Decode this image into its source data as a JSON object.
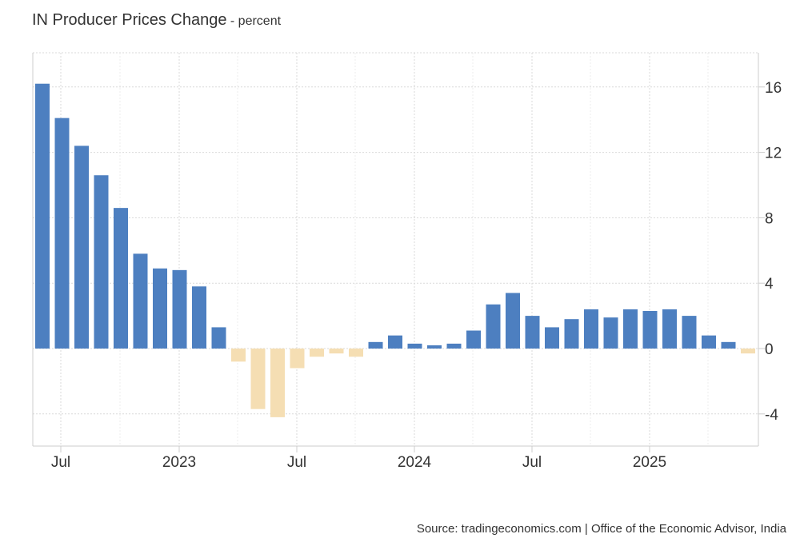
{
  "title": "IN Producer Prices Change",
  "title_suffix": "- percent",
  "source": "Source: tradingeconomics.com | Office of the Economic Advisor, India",
  "colors": {
    "positive": "#4d7fc0",
    "negative": "#f5deb3",
    "grid": "#d9d9d9",
    "axis": "#cccccc",
    "text": "#333333"
  },
  "chart_data": {
    "type": "bar",
    "x_tick_labels": [
      "Jul",
      "2023",
      "Jul",
      "2024",
      "Jul",
      "2025"
    ],
    "y_tick_labels": [
      "16",
      "12",
      "8",
      "4",
      "0",
      "-4"
    ],
    "ylim": [
      -6,
      18
    ],
    "y_axis_position": "right",
    "grid": true,
    "categories": [
      "2022-06",
      "2022-07",
      "2022-08",
      "2022-09",
      "2022-10",
      "2022-11",
      "2022-12",
      "2023-01",
      "2023-02",
      "2023-03",
      "2023-04",
      "2023-05",
      "2023-06",
      "2023-07",
      "2023-08",
      "2023-09",
      "2023-10",
      "2023-11",
      "2023-12",
      "2024-01",
      "2024-02",
      "2024-03",
      "2024-04",
      "2024-05",
      "2024-06",
      "2024-07",
      "2024-08",
      "2024-09",
      "2024-10",
      "2024-11",
      "2024-12",
      "2025-01",
      "2025-02",
      "2025-03",
      "2025-04",
      "2025-05",
      "2025-06"
    ],
    "values": [
      16.2,
      14.1,
      12.4,
      10.6,
      8.6,
      5.8,
      4.9,
      4.8,
      3.8,
      1.3,
      -0.8,
      -3.7,
      -4.2,
      -1.2,
      -0.5,
      -0.3,
      -0.5,
      0.4,
      0.8,
      0.3,
      0.2,
      0.3,
      1.1,
      2.7,
      3.4,
      2.0,
      1.3,
      1.8,
      2.4,
      1.9,
      2.4,
      2.3,
      2.4,
      2.0,
      0.8,
      0.4,
      -0.3
    ]
  }
}
